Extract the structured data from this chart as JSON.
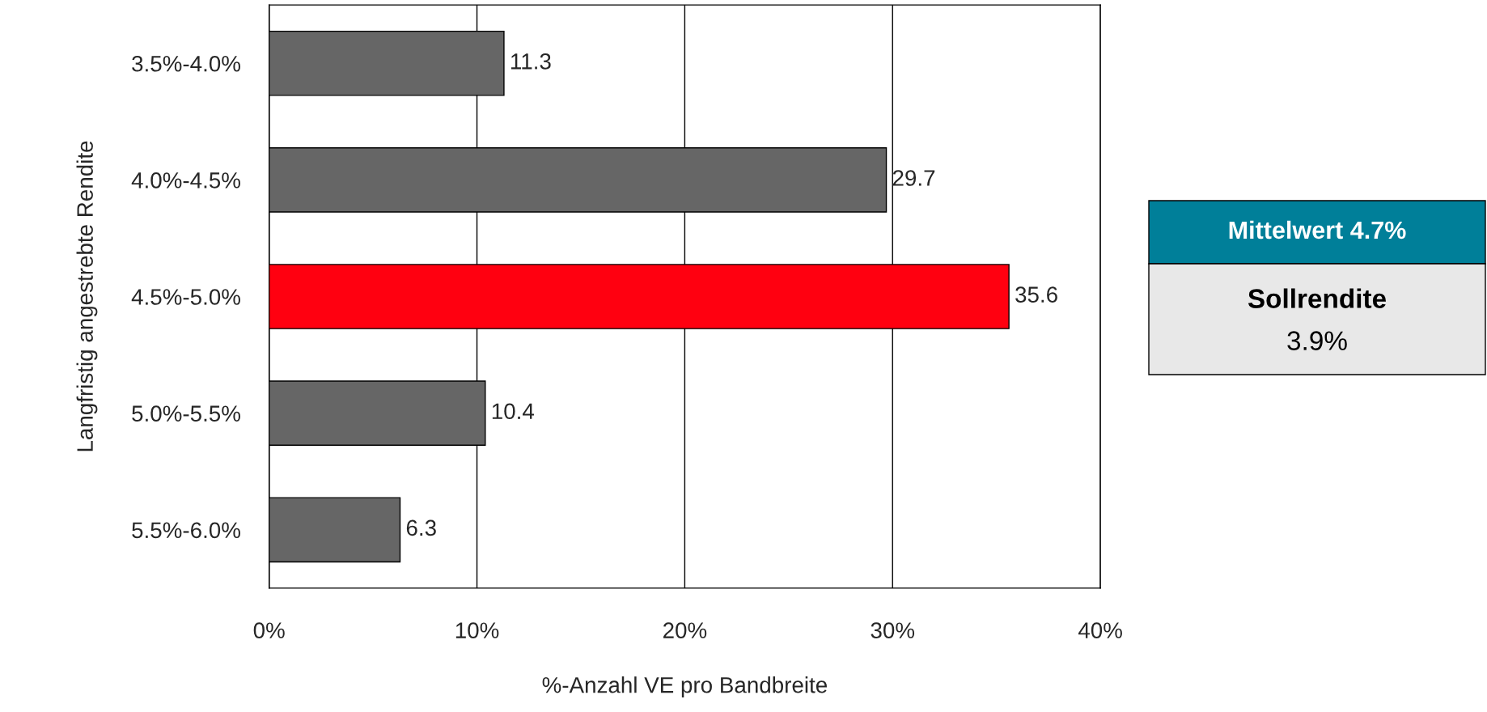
{
  "chart_data": {
    "type": "bar",
    "orientation": "horizontal",
    "categories": [
      "3.5%-4.0%",
      "4.0%-4.5%",
      "4.5%-5.0%",
      "5.0%-5.5%",
      "5.5%-6.0%"
    ],
    "values": [
      11.3,
      29.7,
      35.6,
      10.4,
      6.3
    ],
    "colors": [
      "#666666",
      "#666666",
      "#ff0010",
      "#666666",
      "#666666"
    ],
    "data_labels": true,
    "xlim": [
      0,
      40
    ],
    "xticks": [
      {
        "value": 0,
        "label": "0%"
      },
      {
        "value": 10,
        "label": "10%"
      },
      {
        "value": 20,
        "label": "20%"
      },
      {
        "value": 30,
        "label": "30%"
      },
      {
        "value": 40,
        "label": "40%"
      }
    ],
    "xlabel": "%-Anzahl VE pro Bandbreite",
    "ylabel": "Langfristig angestrebte Rendite",
    "grid": "x",
    "annotations": [
      "Mittelwert 4.7%",
      "Sollrendite",
      "3.9%"
    ]
  }
}
